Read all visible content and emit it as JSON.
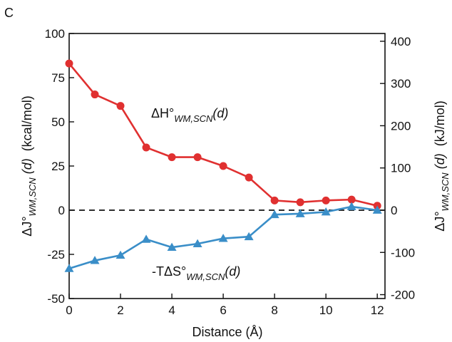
{
  "panel_label": "C",
  "chart_data": {
    "type": "line",
    "x": [
      0,
      1,
      2,
      3,
      4,
      5,
      6,
      7,
      8,
      9,
      10,
      11,
      12
    ],
    "series": [
      {
        "name_parts": [
          "ΔH°",
          "WM,SCN",
          "(d)"
        ],
        "color": "#e03030",
        "marker": "circle",
        "values": [
          83,
          65.5,
          59,
          35.5,
          30,
          30,
          25,
          18.5,
          5.5,
          4.5,
          5.5,
          6,
          2.5
        ]
      },
      {
        "name_parts": [
          "-TΔS°",
          "WM,SCN",
          "(d)"
        ],
        "color": "#3a8ec8",
        "marker": "triangle",
        "values": [
          -33,
          -28.5,
          -25.5,
          -16.5,
          -21,
          -19,
          -16,
          -15,
          -2.5,
          -2,
          -1,
          2,
          0
        ]
      }
    ],
    "xlabel": "Distance (Å)",
    "xlim": [
      0,
      12.3
    ],
    "xticks": [
      0,
      2,
      4,
      6,
      8,
      10,
      12
    ],
    "ylabel_left_parts": [
      "ΔJ°",
      "WM,SCN",
      " (d)",
      "  (kcal/mol)"
    ],
    "ylim_left": [
      -50,
      100
    ],
    "yticks_left": [
      -50,
      -25,
      0,
      25,
      50,
      75,
      100
    ],
    "ylabel_right_parts": [
      "ΔJ°",
      "WM,SCN",
      " (d)",
      "  (kJ/mol)"
    ],
    "ylim_right": [
      -209.2,
      418.4
    ],
    "yticks_right": [
      -200,
      -100,
      0,
      100,
      200,
      300,
      400
    ],
    "reference_line": {
      "y": 0,
      "style": "dashed"
    },
    "grid": false
  }
}
